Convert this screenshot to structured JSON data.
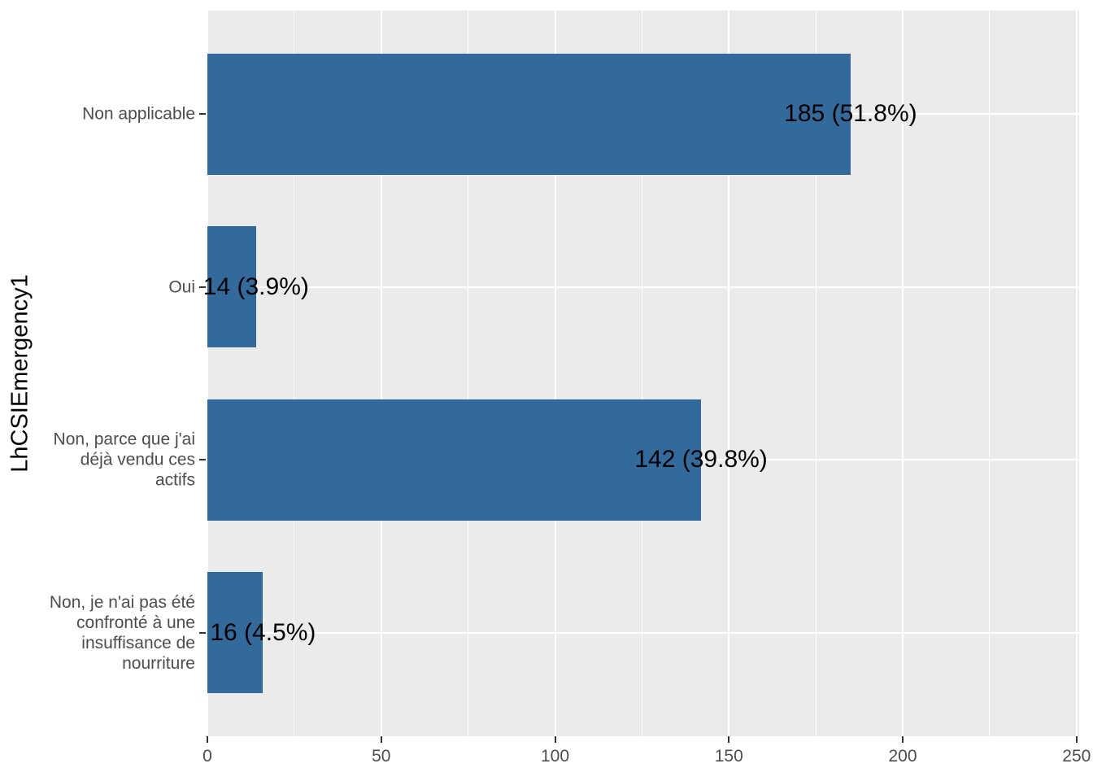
{
  "chart_data": {
    "type": "bar",
    "orientation": "horizontal",
    "ylabel": "LhCSIEmergency1",
    "categories": [
      "Non applicable",
      "Oui",
      "Non, parce que j'ai déjà vendu ces actifs",
      "Non, je n'ai pas été confronté à une insuffisance de nourriture"
    ],
    "category_display_lines": [
      [
        "Non applicable"
      ],
      [
        "Oui"
      ],
      [
        "Non, parce que j'ai",
        "déjà vendu ces",
        "actifs"
      ],
      [
        "Non, je n'ai pas été",
        "confronté à une",
        "insuffisance de",
        "nourriture"
      ]
    ],
    "values": [
      185,
      14,
      142,
      16
    ],
    "bar_labels": [
      "185 (51.8%)",
      "14 (3.9%)",
      "142 (39.8%)",
      "16 (4.5%)"
    ],
    "x_ticks": [
      0,
      50,
      100,
      150,
      200,
      250
    ],
    "x_minor_ticks": [
      25,
      75,
      125,
      175,
      225
    ],
    "xlim": [
      0,
      250.7
    ],
    "grid": true,
    "legend_position": "none",
    "colors": {
      "bar_fill": "#34699B",
      "panel_bg": "#EBEBEB",
      "grid": "#FFFFFF",
      "axis_text": "#4D4D4D",
      "axis_title": "#000000",
      "bar_label_text": "#000000",
      "tick_mark": "#333333",
      "page_bg": "#FFFFFF"
    }
  }
}
